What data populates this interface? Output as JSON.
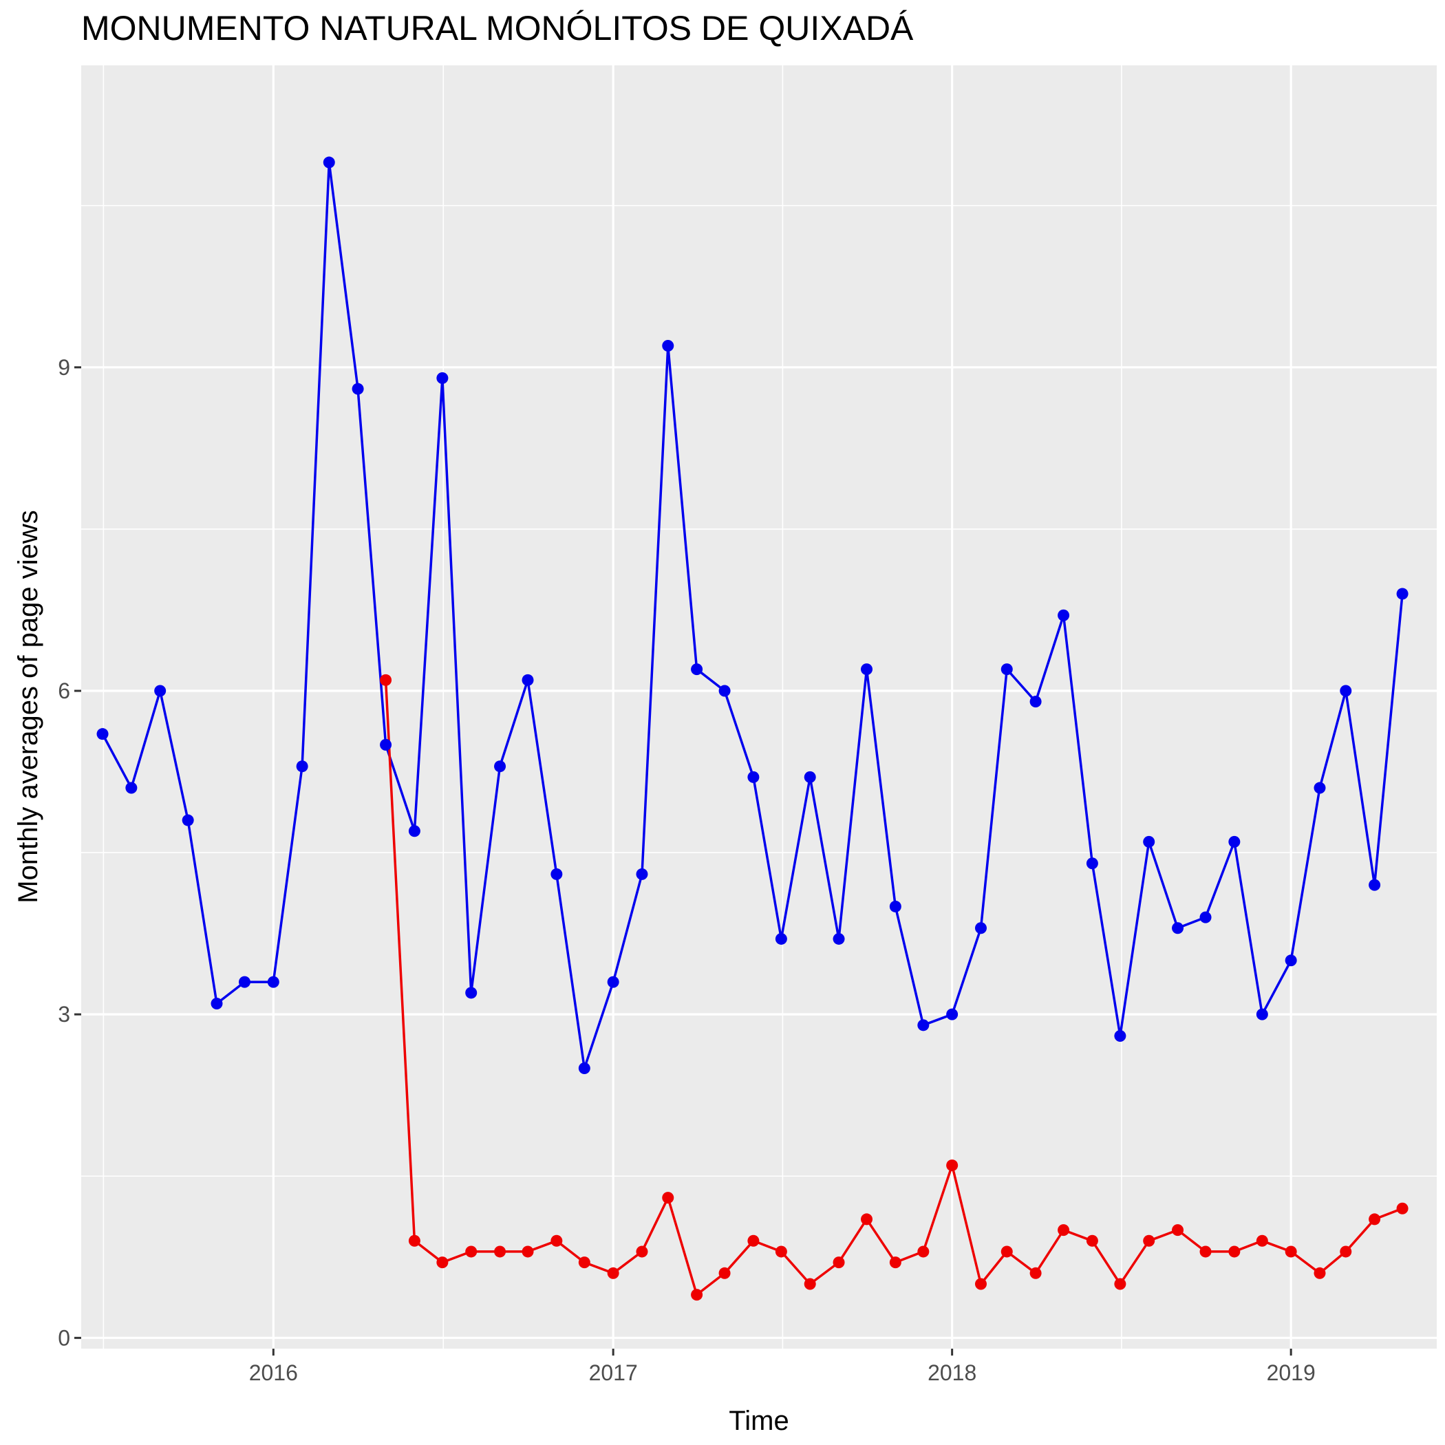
{
  "chart_data": {
    "type": "line",
    "title": "MONUMENTO NATURAL MONÓLITOS DE QUIXADÁ",
    "xlabel": "Time",
    "ylabel": "Monthly averages of page views",
    "xlim": [
      "2015-06-08",
      "2019-06-07"
    ],
    "ylim": [
      -0.1,
      11.8
    ],
    "x_ticks": [
      "2016-01-01",
      "2017-01-01",
      "2018-01-01",
      "2019-01-01"
    ],
    "x_tick_labels": [
      "2016",
      "2017",
      "2018",
      "2019"
    ],
    "y_ticks": [
      0,
      3,
      6,
      9
    ],
    "y_tick_labels": [
      "0",
      "3",
      "6",
      "9"
    ],
    "grid": true,
    "legend": "none",
    "series": [
      {
        "color": "#0000ee",
        "x": [
          "2015-07-01",
          "2015-08-01",
          "2015-09-01",
          "2015-10-01",
          "2015-11-01",
          "2015-12-01",
          "2016-01-01",
          "2016-02-01",
          "2016-03-01",
          "2016-04-01",
          "2016-05-01",
          "2016-06-01",
          "2016-07-01",
          "2016-08-01",
          "2016-09-01",
          "2016-10-01",
          "2016-11-01",
          "2016-12-01",
          "2017-01-01",
          "2017-02-01",
          "2017-03-01",
          "2017-04-01",
          "2017-05-01",
          "2017-06-01",
          "2017-07-01",
          "2017-08-01",
          "2017-09-01",
          "2017-10-01",
          "2017-11-01",
          "2017-12-01",
          "2018-01-01",
          "2018-02-01",
          "2018-03-01",
          "2018-04-01",
          "2018-05-01",
          "2018-06-01",
          "2018-07-01",
          "2018-08-01",
          "2018-09-01",
          "2018-10-01",
          "2018-11-01",
          "2018-12-01",
          "2019-01-01",
          "2019-02-01",
          "2019-03-01",
          "2019-04-01",
          "2019-05-01"
        ],
        "values": [
          5.6,
          5.1,
          6.0,
          4.8,
          3.1,
          3.3,
          3.3,
          5.3,
          10.9,
          8.8,
          5.5,
          4.7,
          8.9,
          3.2,
          5.3,
          6.1,
          4.3,
          2.5,
          3.3,
          4.3,
          9.2,
          6.2,
          6.0,
          5.2,
          3.7,
          5.2,
          3.7,
          6.2,
          4.0,
          2.9,
          3.0,
          3.8,
          6.2,
          5.9,
          6.7,
          4.4,
          2.8,
          4.6,
          3.8,
          3.9,
          4.6,
          3.0,
          3.5,
          5.1,
          6.0,
          4.2,
          6.9
        ]
      },
      {
        "color": "#ee0000",
        "x": [
          "2016-05-01",
          "2016-06-01",
          "2016-07-01",
          "2016-08-01",
          "2016-09-01",
          "2016-10-01",
          "2016-11-01",
          "2016-12-01",
          "2017-01-01",
          "2017-02-01",
          "2017-03-01",
          "2017-04-01",
          "2017-05-01",
          "2017-06-01",
          "2017-07-01",
          "2017-08-01",
          "2017-09-01",
          "2017-10-01",
          "2017-11-01",
          "2017-12-01",
          "2018-01-01",
          "2018-02-01",
          "2018-03-01",
          "2018-04-01",
          "2018-05-01",
          "2018-06-01",
          "2018-07-01",
          "2018-08-01",
          "2018-09-01",
          "2018-10-01",
          "2018-11-01",
          "2018-12-01",
          "2019-01-01",
          "2019-02-01",
          "2019-03-01",
          "2019-04-01",
          "2019-05-01"
        ],
        "values": [
          6.1,
          0.9,
          0.7,
          0.8,
          0.8,
          0.8,
          0.9,
          0.7,
          0.6,
          0.8,
          1.3,
          0.4,
          0.6,
          0.9,
          0.8,
          0.5,
          0.7,
          1.1,
          0.7,
          0.8,
          1.6,
          0.5,
          0.8,
          0.6,
          1.0,
          0.9,
          0.5,
          0.9,
          1.0,
          0.8,
          0.8,
          0.9,
          0.8,
          0.6,
          0.8,
          1.1,
          1.2
        ]
      }
    ]
  }
}
